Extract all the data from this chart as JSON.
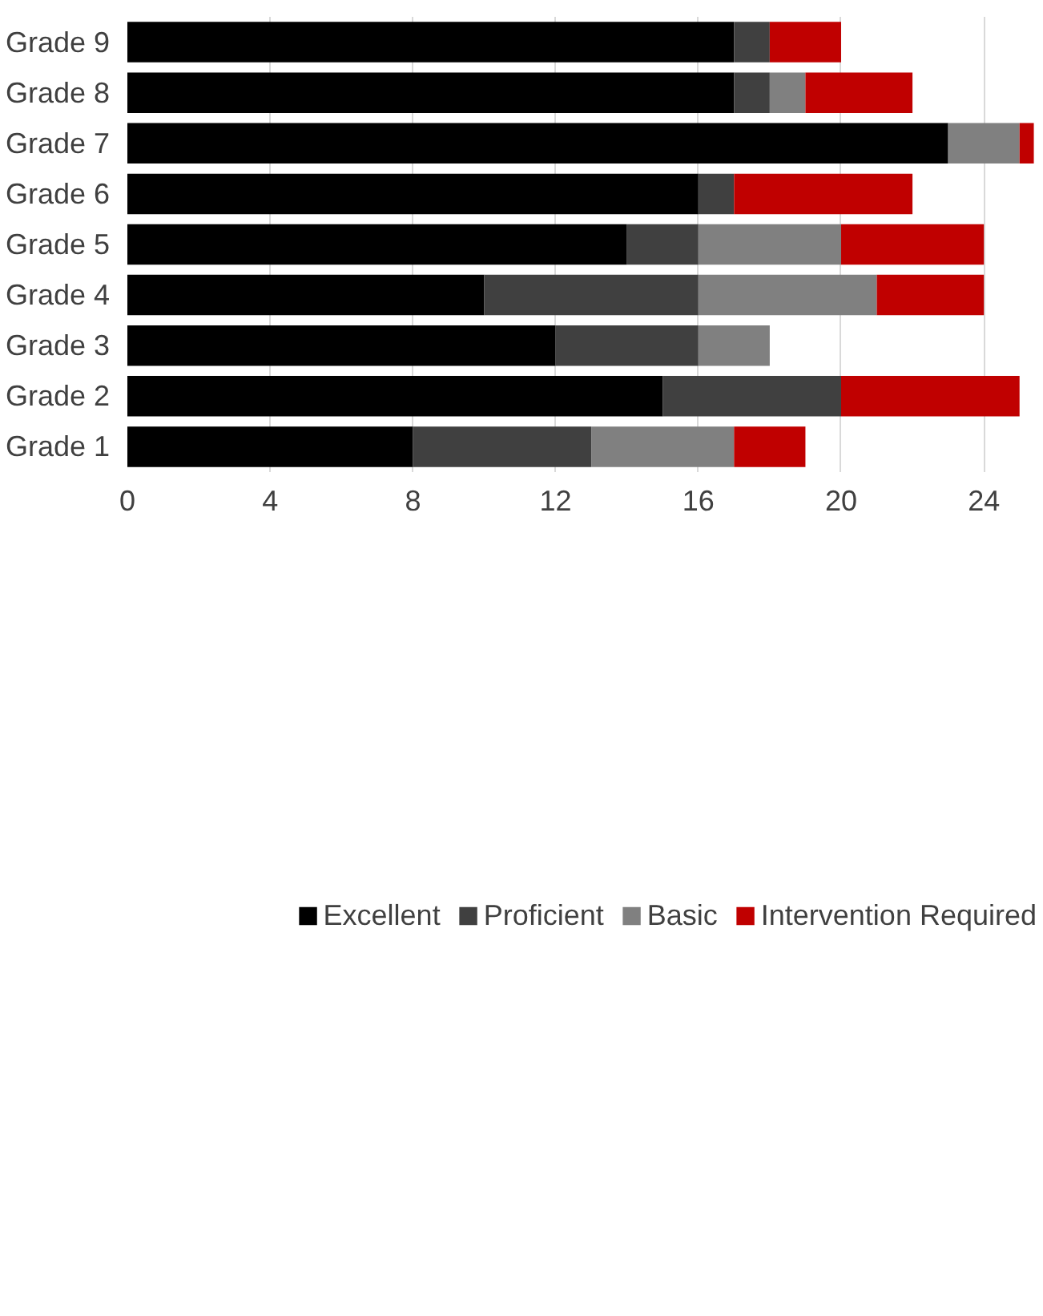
{
  "chart_data": {
    "type": "bar",
    "orientation": "horizontal",
    "stacked": true,
    "categories": [
      "Grade 9",
      "Grade 8",
      "Grade 7",
      "Grade 6",
      "Grade 5",
      "Grade 4",
      "Grade 3",
      "Grade 2",
      "Grade 1"
    ],
    "series": [
      {
        "name": "Excellent",
        "color": "#000000",
        "values": [
          17,
          17,
          23,
          16,
          14,
          10,
          12,
          15,
          8
        ]
      },
      {
        "name": "Proficient",
        "color": "#404040",
        "values": [
          1,
          1,
          0,
          1,
          2,
          6,
          4,
          5,
          5
        ]
      },
      {
        "name": "Basic",
        "color": "#808080",
        "values": [
          0,
          1,
          2,
          0,
          4,
          5,
          2,
          0,
          4
        ]
      },
      {
        "name": "Intervention Required",
        "color": "#c00000",
        "values": [
          2,
          3,
          0.4,
          5,
          4,
          3,
          0,
          5,
          2
        ]
      }
    ],
    "xlim": [
      0,
      25.5
    ],
    "xticks": [
      0,
      4,
      8,
      12,
      16,
      20,
      24
    ],
    "grid": "x",
    "legend": "bottom"
  }
}
